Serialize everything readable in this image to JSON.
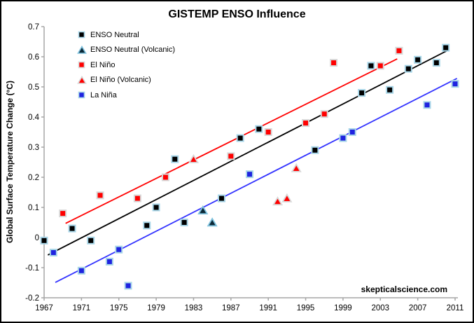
{
  "title": "GISTEMP ENSO Influence",
  "watermark": "skepticalscience.com",
  "chart_data": {
    "type": "scatter",
    "title": "GISTEMP ENSO Influence",
    "xlabel": "",
    "ylabel": "Global Surface Temperature Change (°C)",
    "xlim": [
      1967,
      2011
    ],
    "ylim": [
      -0.2,
      0.7
    ],
    "x_ticks": [
      1967,
      1971,
      1975,
      1979,
      1983,
      1987,
      1991,
      1995,
      1999,
      2003,
      2007,
      2011
    ],
    "y_ticks": [
      -0.2,
      -0.1,
      0,
      0.1,
      0.2,
      0.3,
      0.4,
      0.5,
      0.6,
      0.7
    ],
    "grid": false,
    "legend_position": "top-left-inside",
    "axis_color": "#a6a6a6",
    "series": [
      {
        "name": "ENSO Neutral",
        "marker": "square",
        "color": "#000000",
        "edge": "#a8d6e8",
        "points": [
          [
            1967,
            -0.01
          ],
          [
            1970,
            0.03
          ],
          [
            1972,
            -0.01
          ],
          [
            1978,
            0.04
          ],
          [
            1979,
            0.1
          ],
          [
            1981,
            0.26
          ],
          [
            1982,
            0.05
          ],
          [
            1986,
            0.13
          ],
          [
            1988,
            0.33
          ],
          [
            1990,
            0.36
          ],
          [
            1996,
            0.29
          ],
          [
            2001,
            0.48
          ],
          [
            2002,
            0.57
          ],
          [
            2004,
            0.49
          ],
          [
            2006,
            0.56
          ],
          [
            2007,
            0.59
          ],
          [
            2009,
            0.58
          ],
          [
            2010,
            0.63
          ]
        ]
      },
      {
        "name": "ENSO Neutral (Volcanic)",
        "marker": "triangle",
        "color": "#0c2836",
        "edge": "#7fc2de",
        "points": [
          [
            1984,
            0.09
          ],
          [
            1985,
            0.05
          ]
        ]
      },
      {
        "name": "El Niño",
        "marker": "square",
        "color": "#ff0000",
        "edge": "#d8d8d8",
        "points": [
          [
            1969,
            0.08
          ],
          [
            1973,
            0.14
          ],
          [
            1977,
            0.13
          ],
          [
            1980,
            0.2
          ],
          [
            1987,
            0.27
          ],
          [
            1991,
            0.35
          ],
          [
            1995,
            0.38
          ],
          [
            1997,
            0.41
          ],
          [
            1998,
            0.58
          ],
          [
            2003,
            0.57
          ],
          [
            2005,
            0.62
          ]
        ]
      },
      {
        "name": "El Niño (Volcanic)",
        "marker": "triangle",
        "color": "#ff0000",
        "edge": "#d8d8d8",
        "points": [
          [
            1983,
            0.26
          ],
          [
            1992,
            0.12
          ],
          [
            1993,
            0.13
          ],
          [
            1994,
            0.23
          ]
        ]
      },
      {
        "name": "La Niña",
        "marker": "square",
        "color": "#1f23e0",
        "edge": "#a8d6e8",
        "points": [
          [
            1968,
            -0.05
          ],
          [
            1971,
            -0.11
          ],
          [
            1974,
            -0.08
          ],
          [
            1975,
            -0.04
          ],
          [
            1976,
            -0.16
          ],
          [
            1989,
            0.21
          ],
          [
            1999,
            0.33
          ],
          [
            2000,
            0.35
          ],
          [
            2008,
            0.44
          ],
          [
            2011,
            0.51
          ]
        ]
      }
    ],
    "trend_lines": [
      {
        "series": "El Niño",
        "color": "#ff0000",
        "x1": 1969.3,
        "y1": 0.047,
        "x2": 2004.8,
        "y2": 0.593
      },
      {
        "series": "ENSO Neutral",
        "color": "#000000",
        "x1": 1967.4,
        "y1": -0.058,
        "x2": 2010.2,
        "y2": 0.621
      },
      {
        "series": "La Niña",
        "color": "#3333ff",
        "x1": 1968.2,
        "y1": -0.149,
        "x2": 2011.2,
        "y2": 0.528
      }
    ]
  }
}
